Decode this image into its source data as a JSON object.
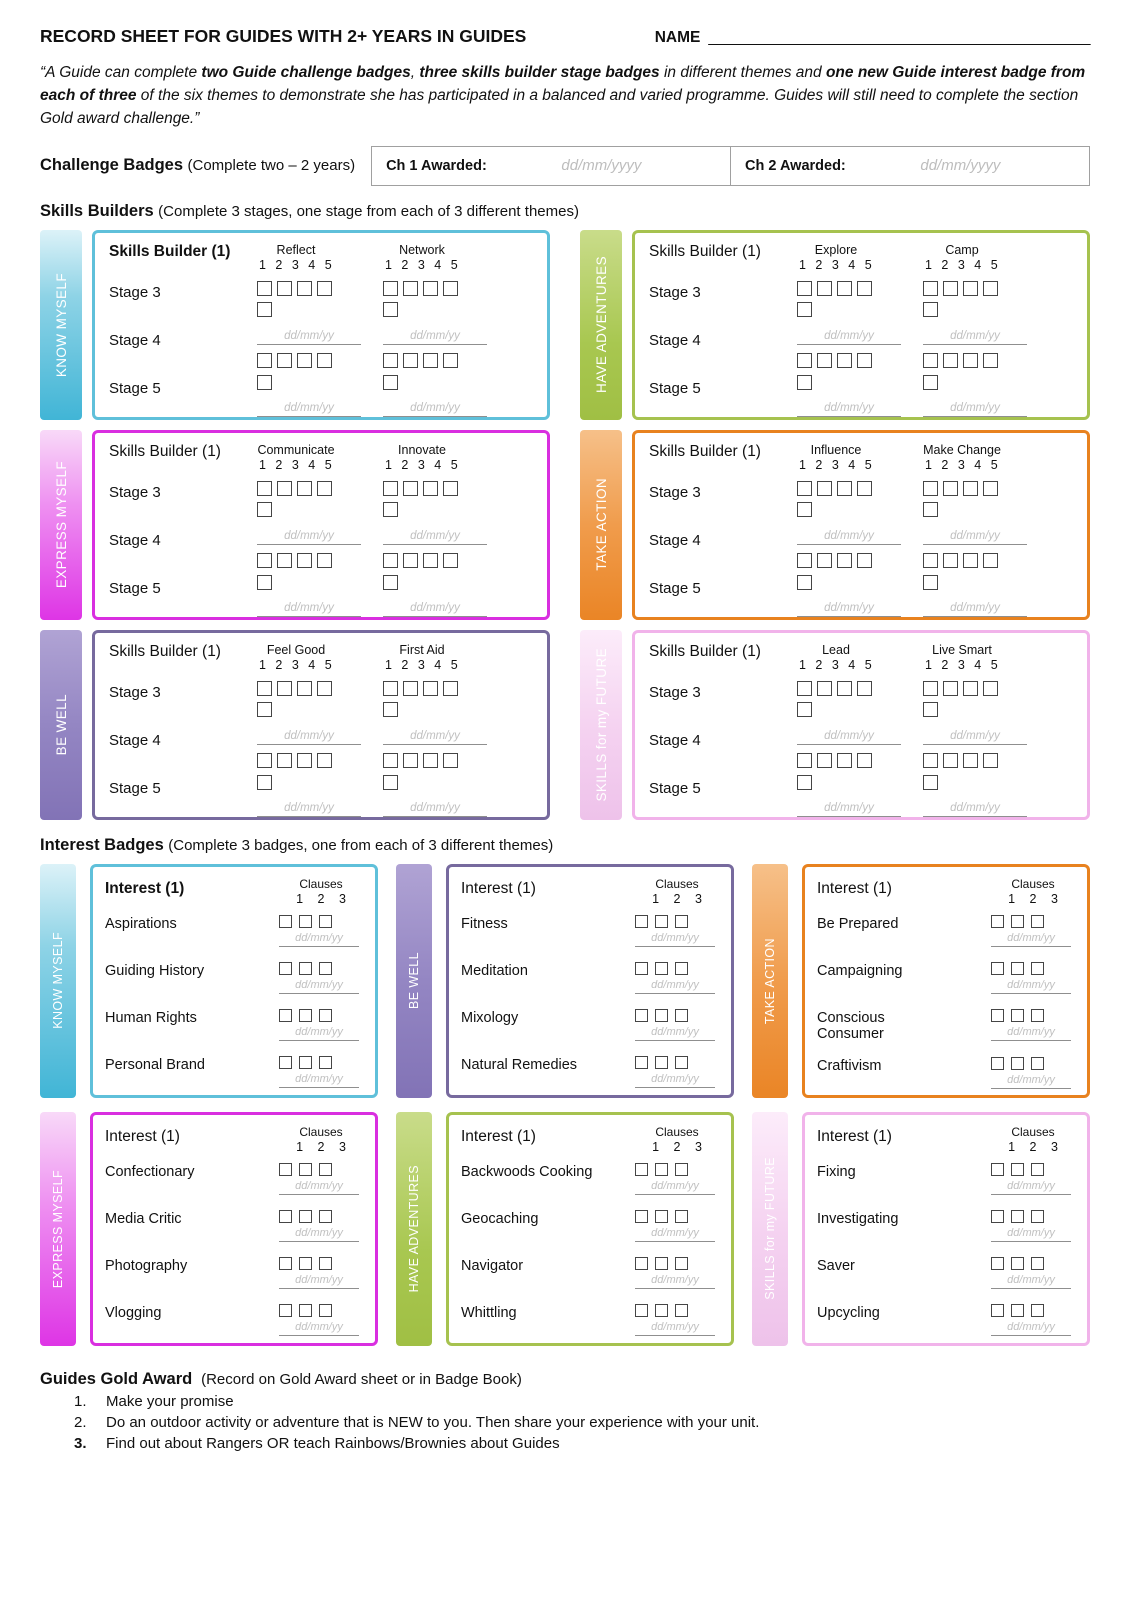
{
  "page": {
    "title": "RECORD SHEET FOR GUIDES WITH 2+ YEARS IN GUIDES",
    "name_label": "NAME",
    "name_line": "_______________________________________________"
  },
  "intro": {
    "seg1": "“A Guide can complete ",
    "seg2": "two Guide challenge badges",
    "seg3": ", ",
    "seg4": "three skills builder stage badges",
    "seg5": " in different themes and ",
    "seg6": "one new Guide interest badge from each of three",
    "seg7": " of the six themes to demonstrate she has participated in a balanced and varied programme. Guides will still need to complete the section Gold award challenge.”"
  },
  "challenge": {
    "heading": "Challenge Badges",
    "subheading": "(Complete two – 2 years)",
    "ch1_label": "Ch 1 Awarded:",
    "ch2_label": "Ch 2 Awarded:",
    "date_placeholder": "dd/mm/yyyy"
  },
  "skills": {
    "heading": "Skills Builders",
    "subheading": "(Complete 3 stages, one stage from each of 3 different themes)",
    "title": "Skills Builder (1)",
    "numbers": "1 2 3 4 5",
    "stage3": "Stage 3",
    "stage4": "Stage 4",
    "stage5": "Stage 5",
    "date_placeholder": "dd/mm/yy",
    "panels": [
      {
        "theme": "KNOW MYSELF",
        "col1": "Reflect",
        "col2": "Network",
        "accent": "#5FC0DA"
      },
      {
        "theme": "HAVE ADVENTURES",
        "col1": "Explore",
        "col2": "Camp",
        "accent": "#A6C24F"
      },
      {
        "theme": "EXPRESS MYSELF",
        "col1": "Communicate",
        "col2": "Innovate",
        "accent": "#D92FE0"
      },
      {
        "theme": "TAKE ACTION",
        "col1": "Influence",
        "col2": "Make Change",
        "accent": "#E8821F"
      },
      {
        "theme": "BE WELL",
        "col1": "Feel Good",
        "col2": "First Aid",
        "accent": "#776A9E"
      },
      {
        "theme": "SKILLS for my FUTURE",
        "col1": "Lead",
        "col2": "Live Smart",
        "accent": "#F1B3EA"
      }
    ]
  },
  "interest": {
    "heading": "Interest Badges",
    "subheading": "(Complete 3 badges, one from each of 3 different themes)",
    "title": "Interest (1)",
    "clauses_label": "Clauses",
    "clauses_numbers": "1 2 3",
    "date_placeholder": "dd/mm/yy",
    "panels": [
      {
        "theme": "KNOW MYSELF",
        "items": [
          "Aspirations",
          "Guiding History",
          "Human Rights",
          "Personal Brand"
        ]
      },
      {
        "theme": "BE WELL",
        "items": [
          "Fitness",
          "Meditation",
          "Mixology",
          "Natural Remedies"
        ]
      },
      {
        "theme": "TAKE ACTION",
        "items": [
          "Be Prepared",
          "Campaigning",
          "Conscious Consumer",
          "Craftivism"
        ]
      },
      {
        "theme": "EXPRESS MYSELF",
        "items": [
          "Confectionary",
          "Media Critic",
          "Photography",
          "Vlogging"
        ]
      },
      {
        "theme": "HAVE ADVENTURES",
        "items": [
          "Backwoods Cooking",
          "Geocaching",
          "Navigator",
          "Whittling"
        ]
      },
      {
        "theme": "SKILLS for my FUTURE",
        "items": [
          "Fixing",
          "Investigating",
          "Saver",
          "Upcycling"
        ]
      }
    ]
  },
  "gold": {
    "heading": "Guides Gold Award",
    "subheading": "(Record on Gold Award sheet or in Badge Book)",
    "items": [
      {
        "num": "1.",
        "text": "Make your promise"
      },
      {
        "num": "2.",
        "text": "Do an outdoor activity or adventure that is NEW to you. Then share your experience with your unit."
      },
      {
        "num": "3.",
        "text": "Find out about Rangers OR teach Rainbows/Brownies about Guides"
      }
    ]
  }
}
